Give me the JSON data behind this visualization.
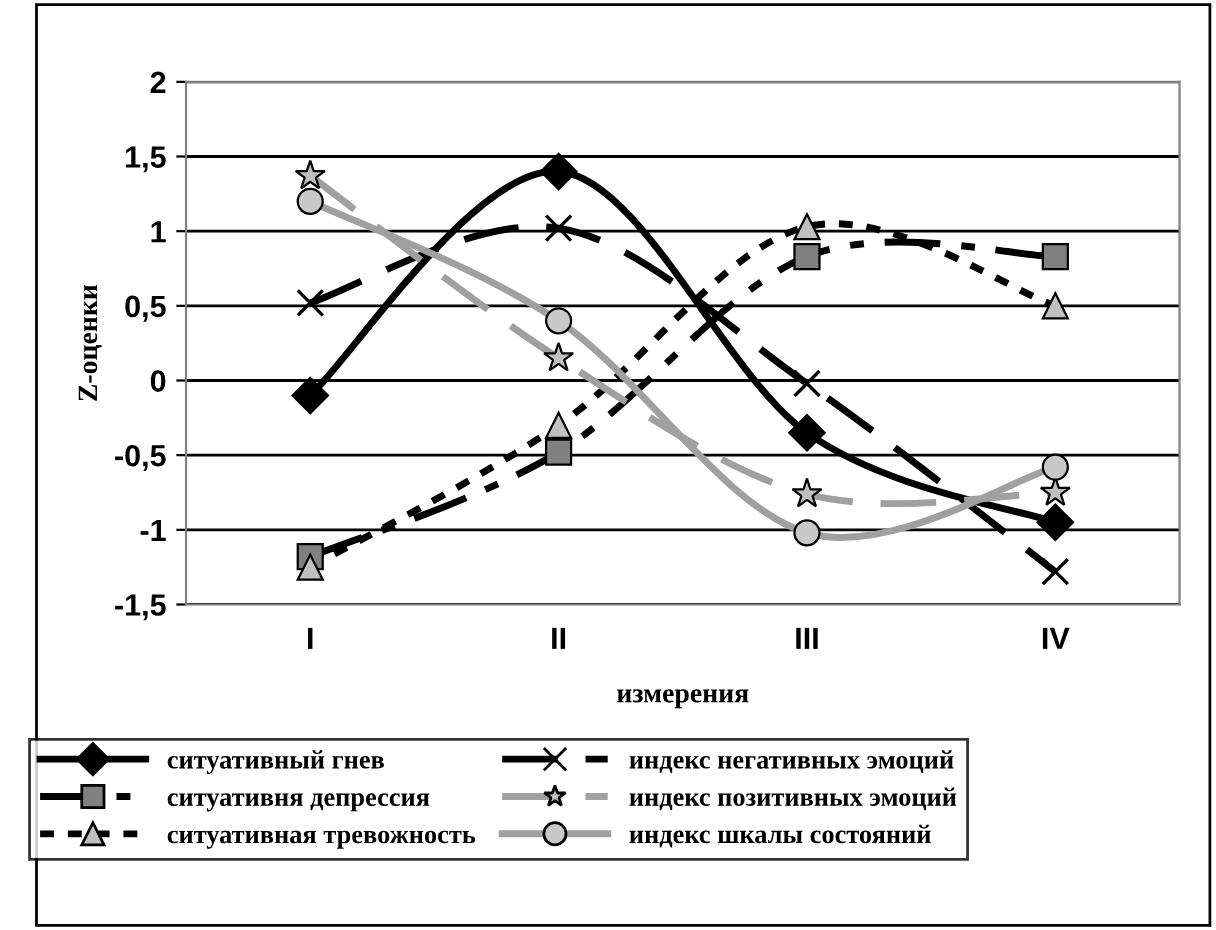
{
  "chart_data": {
    "type": "line",
    "xlabel": "измерения",
    "ylabel": "Z-оценки",
    "categories": [
      "I",
      "II",
      "III",
      "IV"
    ],
    "series": [
      {
        "name": "ситуативный гнев",
        "color": "#000000",
        "colors": [
          "#000000",
          "#000000",
          "#000000",
          "#000000"
        ],
        "marker": "diamond",
        "line_style": "solid",
        "values": [
          -0.1,
          1.4,
          -0.35,
          -0.95
        ]
      },
      {
        "name": "ситуативня депрессия",
        "color": "#000000",
        "colors": [
          "#808080",
          "#808080",
          "#808080",
          "#808080"
        ],
        "marker": "square",
        "line_style": "dashdot",
        "values": [
          -1.18,
          -0.48,
          0.83,
          0.83
        ]
      },
      {
        "name": "ситуативная тревожность",
        "color": "#000000",
        "colors": [
          "#c0c0c0",
          "#c0c0c0",
          "#c0c0c0",
          "#c0c0c0"
        ],
        "marker": "triangle",
        "line_style": "dotted",
        "values": [
          -1.25,
          -0.3,
          1.03,
          0.5
        ]
      },
      {
        "name": "индекс негативных эмоций",
        "color": "#000000",
        "colors": [
          "#000000",
          "#000000",
          "#000000",
          "#000000"
        ],
        "marker": "cross",
        "line_style": "dashed",
        "values": [
          0.52,
          1.02,
          -0.02,
          -1.28
        ]
      },
      {
        "name": "индекс позитивных эмоций",
        "color": "#a0a0a0",
        "colors": [
          "#c0c0c0",
          "#c0c0c0",
          "#c0c0c0",
          "#c0c0c0"
        ],
        "marker": "star",
        "line_style": "dashed",
        "values": [
          1.37,
          0.15,
          -0.76,
          -0.75
        ]
      },
      {
        "name": "индекс шкалы состояний",
        "color": "#a0a0a0",
        "colors": [
          "#c8c8c8",
          "#c8c8c8",
          "#c8c8c8",
          "#c8c8c8"
        ],
        "marker": "circle",
        "line_style": "solid",
        "values": [
          1.2,
          0.4,
          -1.02,
          -0.58
        ]
      }
    ],
    "ylim": [
      -1.5,
      2
    ],
    "yticks": [
      {
        "value": -1.5,
        "label": "-1,5"
      },
      -1,
      {
        "value": -0.5,
        "label": "-0,5"
      },
      0,
      {
        "value": 0.5,
        "label": "0,5"
      },
      1,
      {
        "value": 1.5,
        "label": "1,5"
      },
      2
    ],
    "grid": "y",
    "legend": "bottom"
  }
}
